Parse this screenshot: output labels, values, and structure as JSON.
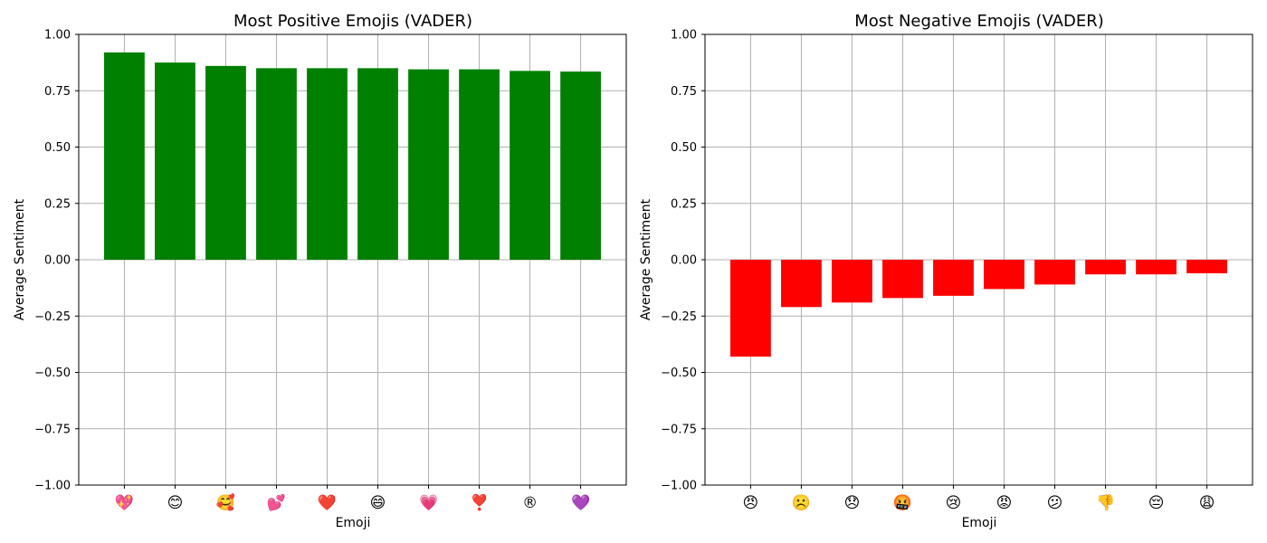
{
  "chart_data": [
    {
      "type": "bar",
      "title": "Most Positive Emojis (VADER)",
      "xlabel": "Emoji",
      "ylabel": "Average Sentiment",
      "ylim": [
        -1.0,
        1.0
      ],
      "yticks": [
        "1.00",
        "0.75",
        "0.50",
        "0.25",
        "0.00",
        "−0.25",
        "−0.50",
        "−0.75",
        "−1.00"
      ],
      "ytick_values": [
        1.0,
        0.75,
        0.5,
        0.25,
        0.0,
        -0.25,
        -0.5,
        -0.75,
        -1.0
      ],
      "grid": true,
      "bar_color": "#008000",
      "categories": [
        "💖",
        "😊",
        "🥰",
        "💕",
        "❤️",
        "😄",
        "💗",
        "❣️",
        "®",
        "💜"
      ],
      "values": [
        0.92,
        0.875,
        0.86,
        0.85,
        0.85,
        0.85,
        0.845,
        0.845,
        0.838,
        0.835
      ]
    },
    {
      "type": "bar",
      "title": "Most Negative Emojis (VADER)",
      "xlabel": "Emoji",
      "ylabel": "Average Sentiment",
      "ylim": [
        -1.0,
        1.0
      ],
      "yticks": [
        "1.00",
        "0.75",
        "0.50",
        "0.25",
        "0.00",
        "−0.25",
        "−0.50",
        "−0.75",
        "−1.00"
      ],
      "ytick_values": [
        1.0,
        0.75,
        0.5,
        0.25,
        0.0,
        -0.25,
        -0.5,
        -0.75,
        -1.0
      ],
      "grid": true,
      "bar_color": "#ff0000",
      "categories": [
        "😠",
        "☹️",
        "😞",
        "🤬",
        "😢",
        "😡",
        "😕",
        "👎",
        "😔",
        "😩"
      ],
      "values": [
        -0.43,
        -0.21,
        -0.19,
        -0.17,
        -0.16,
        -0.13,
        -0.11,
        -0.065,
        -0.065,
        -0.06
      ]
    }
  ]
}
